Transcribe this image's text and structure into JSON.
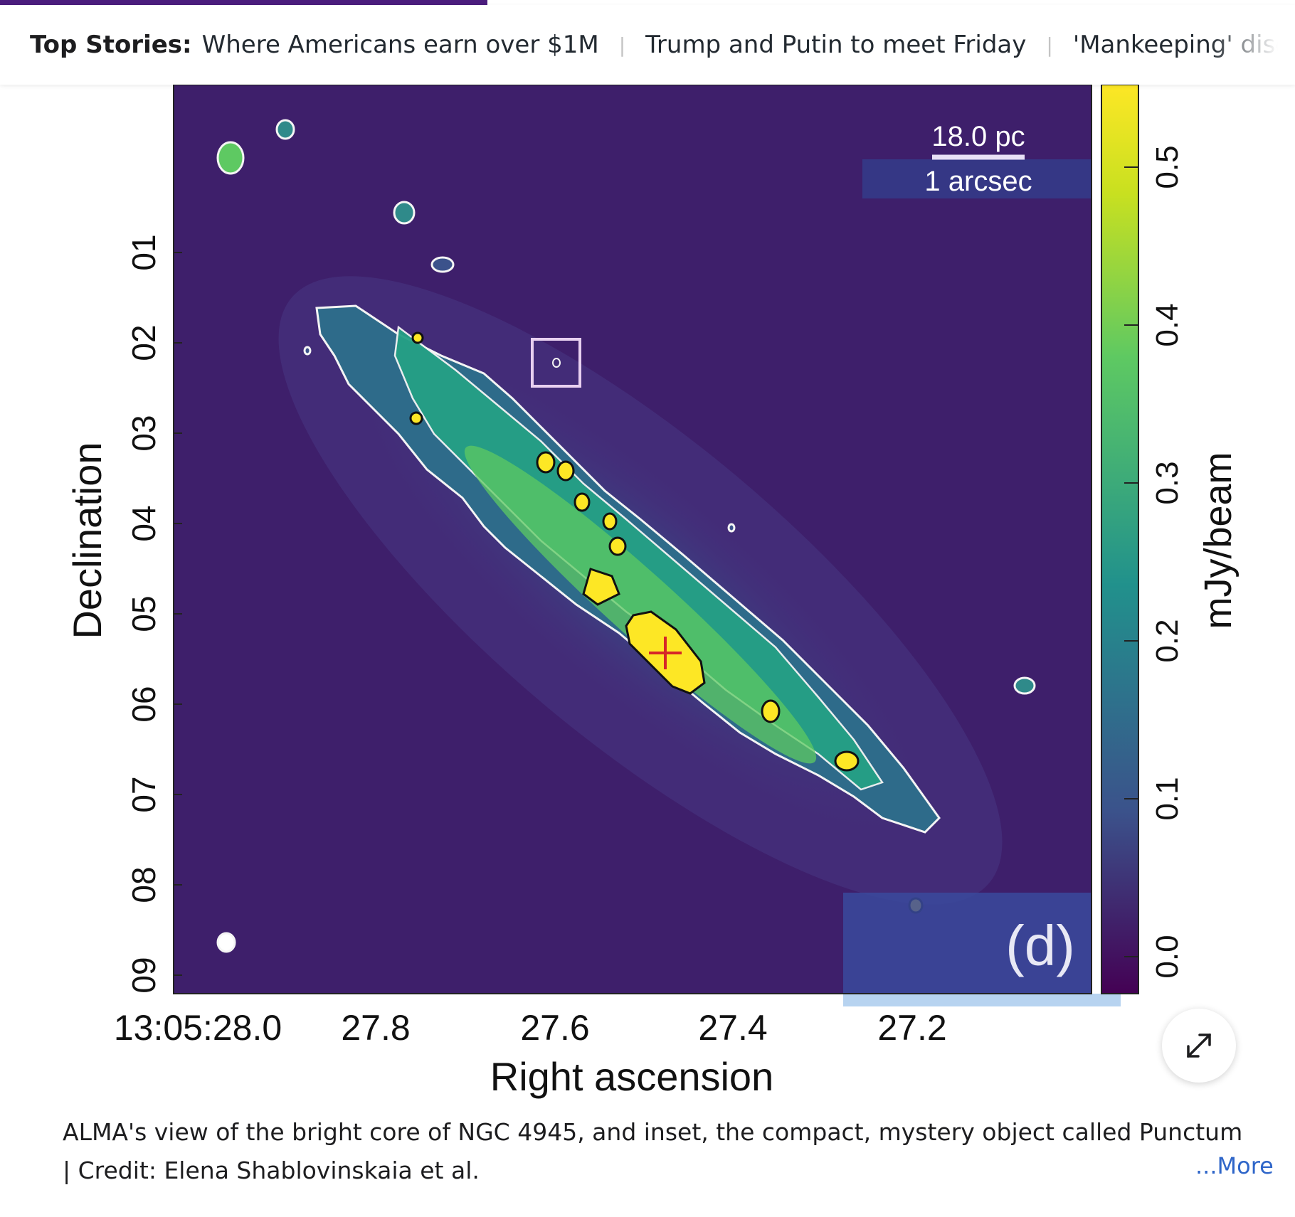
{
  "ticker": {
    "lead": "Top Stories:",
    "stories": [
      "Where Americans earn over $1M",
      "Trump and Putin to meet Friday",
      "'Mankeeping' discourse"
    ],
    "separator": "|"
  },
  "figure": {
    "scale_bar": {
      "top_label": "18.0 pc",
      "bottom_label": "1 arcsec"
    },
    "panel_label": "(d)",
    "ylabel": "Declination",
    "xlabel": "Right ascension",
    "y_ticks": [
      "01",
      "02",
      "03",
      "04",
      "05",
      "06",
      "07",
      "08",
      "09"
    ],
    "x_ticks": [
      "13:05:28.0",
      "27.8",
      "27.6",
      "27.4",
      "27.2"
    ],
    "colorbar_label": "mJy/beam",
    "colorbar_ticks": [
      "0.0",
      "0.1",
      "0.2",
      "0.3",
      "0.4",
      "0.5"
    ],
    "colors": {
      "background": "#3e1f6b",
      "low": "#3b528b",
      "mid": "#21918c",
      "high": "#5ec962",
      "peak": "#fde725",
      "marker": "#d62728"
    }
  },
  "expand": {
    "icon": "expand-arrows-icon"
  },
  "caption": {
    "text": "ALMA's view of the bright core of NGC 4945, and inset, the compact, mystery object called Punctum",
    "credit": "| Credit: Elena Shablovinskaia et al.",
    "more": "...More"
  }
}
